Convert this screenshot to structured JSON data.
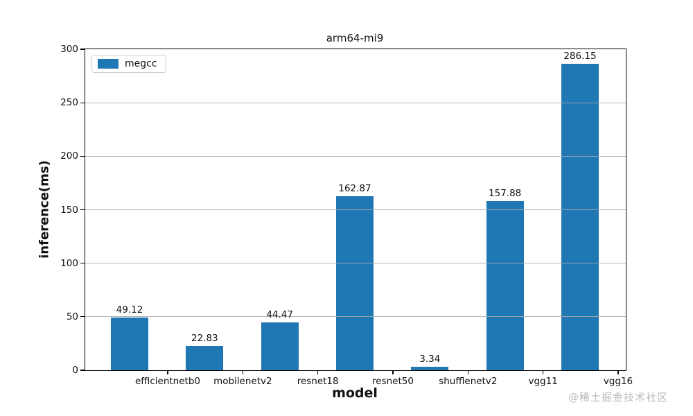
{
  "watermark": "@稀土掘金技术社区",
  "colors": {
    "bar": "#1f77b4",
    "gridline": "#aaaaaa",
    "axis": "#000000",
    "watermark": "#b9b9b9",
    "background": "#ffffff"
  },
  "legend": {
    "items": [
      {
        "label": "megcc",
        "color": "#1f77b4"
      }
    ]
  },
  "chart_data": {
    "type": "bar",
    "title": "arm64-mi9",
    "categories": [
      "efficientnetb0",
      "mobilenetv2",
      "resnet18",
      "resnet50",
      "shufflenetv2",
      "vgg11",
      "vgg16"
    ],
    "series": [
      {
        "name": "megcc",
        "values": [
          49.12,
          22.83,
          44.47,
          162.87,
          3.34,
          157.88,
          286.15
        ]
      }
    ],
    "bar_labels": [
      "49.12",
      "22.83",
      "44.47",
      "162.87",
      "3.34",
      "157.88",
      "286.15"
    ],
    "xlabel": "model",
    "ylabel": "inference(ms)",
    "ylim": [
      0,
      300
    ],
    "yticks": [
      0,
      50,
      100,
      150,
      200,
      250,
      300
    ],
    "grid": "horizontal, drawn over bars",
    "legend_position": "upper-left",
    "bar_color": "#1f77b4",
    "layout_note": "bars offset half a category step left of their x tick labels"
  }
}
